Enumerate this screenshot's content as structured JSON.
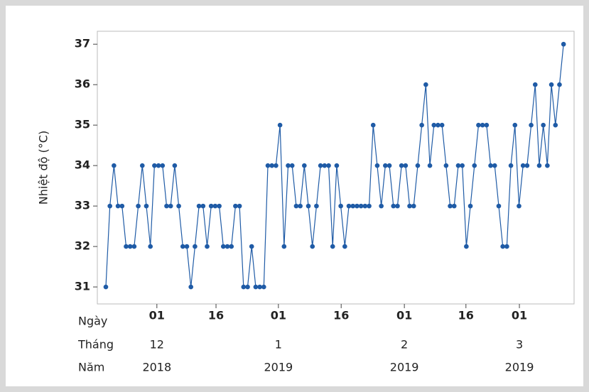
{
  "chart_data": {
    "type": "line",
    "y_label": "Nhiệt độ (°C)",
    "series": [
      {
        "color": "#1f5ba6",
        "values": [
          31,
          33,
          34,
          33,
          33,
          32,
          32,
          32,
          33,
          34,
          33,
          32,
          34,
          34,
          34,
          33,
          33,
          34,
          33,
          32,
          32,
          31,
          32,
          33,
          33,
          32,
          33,
          33,
          33,
          32,
          32,
          32,
          33,
          33,
          31,
          31,
          32,
          31,
          31,
          31,
          34,
          34,
          34,
          35,
          32,
          34,
          34,
          33,
          33,
          34,
          33,
          32,
          33,
          34,
          34,
          34,
          32,
          34,
          33,
          32,
          33,
          33,
          33,
          33,
          33,
          33,
          35,
          34,
          33,
          34,
          34,
          33,
          33,
          34,
          34,
          33,
          33,
          34,
          35,
          36,
          34,
          35,
          35,
          35,
          34,
          33,
          33,
          34,
          34,
          32,
          33,
          34,
          35,
          35,
          35,
          34,
          34,
          33,
          32,
          32,
          34,
          35,
          33,
          34,
          34,
          35,
          36,
          34,
          35,
          34,
          36,
          35,
          36,
          37
        ]
      }
    ],
    "ylim": [
      30.58,
      37.32
    ],
    "yticks": [
      31,
      32,
      33,
      34,
      35,
      36,
      37
    ],
    "xlim": [
      -2.1,
      115.6
    ],
    "x_row_titles": [
      "Ngày",
      "Tháng",
      "Năm"
    ],
    "xticks": [
      {
        "value": 12.6,
        "label": "01"
      },
      {
        "value": 27.2,
        "label": "16"
      },
      {
        "value": 42.6,
        "label": "01"
      },
      {
        "value": 58.1,
        "label": "16"
      },
      {
        "value": 73.7,
        "label": "01"
      },
      {
        "value": 88.9,
        "label": "16"
      },
      {
        "value": 102.1,
        "label": "01"
      }
    ],
    "month_labels": [
      {
        "value": 12.6,
        "label": "12"
      },
      {
        "value": 42.6,
        "label": "1"
      },
      {
        "value": 73.7,
        "label": "2"
      },
      {
        "value": 102.1,
        "label": "3"
      }
    ],
    "year_labels": [
      {
        "value": 12.6,
        "label": "2018"
      },
      {
        "value": 42.6,
        "label": "2019"
      },
      {
        "value": 73.7,
        "label": "2019"
      },
      {
        "value": 102.1,
        "label": "2019"
      }
    ]
  }
}
